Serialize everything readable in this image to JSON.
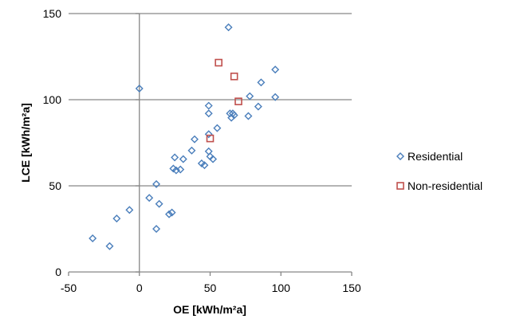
{
  "chart_data": {
    "type": "scatter",
    "title": "",
    "xlabel": "OE [kWh/m²a]",
    "ylabel": "LCE [kWh/m²a]",
    "xlim": [
      -50,
      150
    ],
    "ylim": [
      0,
      150
    ],
    "xticks": [
      -50,
      0,
      50,
      100,
      150
    ],
    "yticks": [
      0,
      50,
      100,
      150
    ],
    "grid": "horizontal",
    "legend_position": "right",
    "series": [
      {
        "name": "Residential",
        "marker": "diamond",
        "color": "#4a7ebb",
        "points": [
          [
            -33,
            19.5
          ],
          [
            -21,
            15
          ],
          [
            -16,
            31
          ],
          [
            -7,
            36
          ],
          [
            0,
            106.5
          ],
          [
            7,
            43
          ],
          [
            12,
            51
          ],
          [
            12,
            25
          ],
          [
            14,
            39.5
          ],
          [
            21,
            33.5
          ],
          [
            23,
            34.5
          ],
          [
            24,
            60
          ],
          [
            25,
            66.5
          ],
          [
            26,
            59
          ],
          [
            29,
            59.5
          ],
          [
            31,
            65.5
          ],
          [
            37,
            70.5
          ],
          [
            39,
            77
          ],
          [
            44,
            63
          ],
          [
            46,
            62
          ],
          [
            49,
            96.5
          ],
          [
            49,
            92
          ],
          [
            49,
            70
          ],
          [
            49,
            80
          ],
          [
            50,
            67
          ],
          [
            52,
            65.5
          ],
          [
            55,
            83.5
          ],
          [
            63,
            142
          ],
          [
            64,
            92
          ],
          [
            65,
            89.5
          ],
          [
            66,
            92
          ],
          [
            67,
            91
          ],
          [
            77,
            90.5
          ],
          [
            78,
            102
          ],
          [
            84,
            96
          ],
          [
            86,
            110
          ],
          [
            96,
            117.5
          ],
          [
            96,
            101.5
          ]
        ]
      },
      {
        "name": "Non-residential",
        "marker": "square",
        "color": "#c0504d",
        "points": [
          [
            50,
            77.5
          ],
          [
            56,
            121.5
          ],
          [
            67,
            113.5
          ],
          [
            70,
            99
          ]
        ]
      }
    ]
  }
}
